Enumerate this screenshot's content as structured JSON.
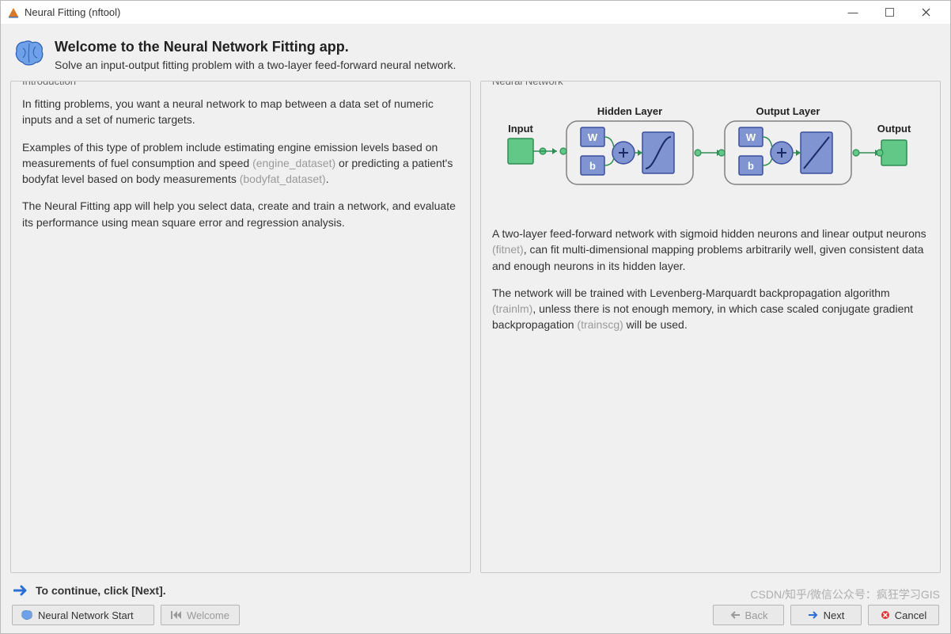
{
  "window": {
    "title": "Neural Fitting (nftool)"
  },
  "header": {
    "title": "Welcome to the Neural Network Fitting app.",
    "subtitle": "Solve an input-output fitting problem with a two-layer feed-forward neural network."
  },
  "intro": {
    "legend": "Introduction",
    "p1": "In fitting problems, you want a neural network to map between a data set of numeric inputs and a set of numeric targets.",
    "p2a": "Examples of this type of problem include estimating engine emission levels based on measurements of fuel consumption and speed ",
    "p2link1": "(engine_dataset)",
    "p2b": " or predicting a patient's bodyfat level based on body measurements ",
    "p2link2": "(bodyfat_dataset)",
    "p2c": ".",
    "p3": "The Neural Fitting app will help you select data, create and train a network, and evaluate its performance using mean square error and regression analysis."
  },
  "nn": {
    "legend": "Neural Network",
    "diagram": {
      "input_label": "Input",
      "hidden_label": "Hidden Layer",
      "output_label": "Output Layer",
      "final_label": "Output",
      "colors": {
        "block_fill": "#7f94d1",
        "block_stroke": "#3a4f9e",
        "node_fill": "#62c887",
        "node_stroke": "#2f8e54",
        "layer_stroke": "#808080",
        "text": "#222222",
        "w_text": "#ffffff"
      }
    },
    "p1a": "A two-layer feed-forward network with sigmoid hidden neurons and linear output neurons ",
    "p1link": "(fitnet)",
    "p1b": ", can fit multi-dimensional mapping problems arbitrarily well, given consistent data and enough neurons in its hidden layer.",
    "p2a": "The network will be trained with Levenberg-Marquardt backpropagation algorithm ",
    "p2link1": "(trainlm)",
    "p2b": ", unless there is not enough memory, in which case scaled conjugate gradient backpropagation ",
    "p2link2": "(trainscg)",
    "p2c": " will be used."
  },
  "footer": {
    "hint": "To continue, click [Next].",
    "buttons": {
      "start": "Neural Network Start",
      "welcome": "Welcome",
      "back": "Back",
      "next": "Next",
      "cancel": "Cancel"
    }
  },
  "watermark": "CSDN/知乎/微信公众号：疯狂学习GIS"
}
